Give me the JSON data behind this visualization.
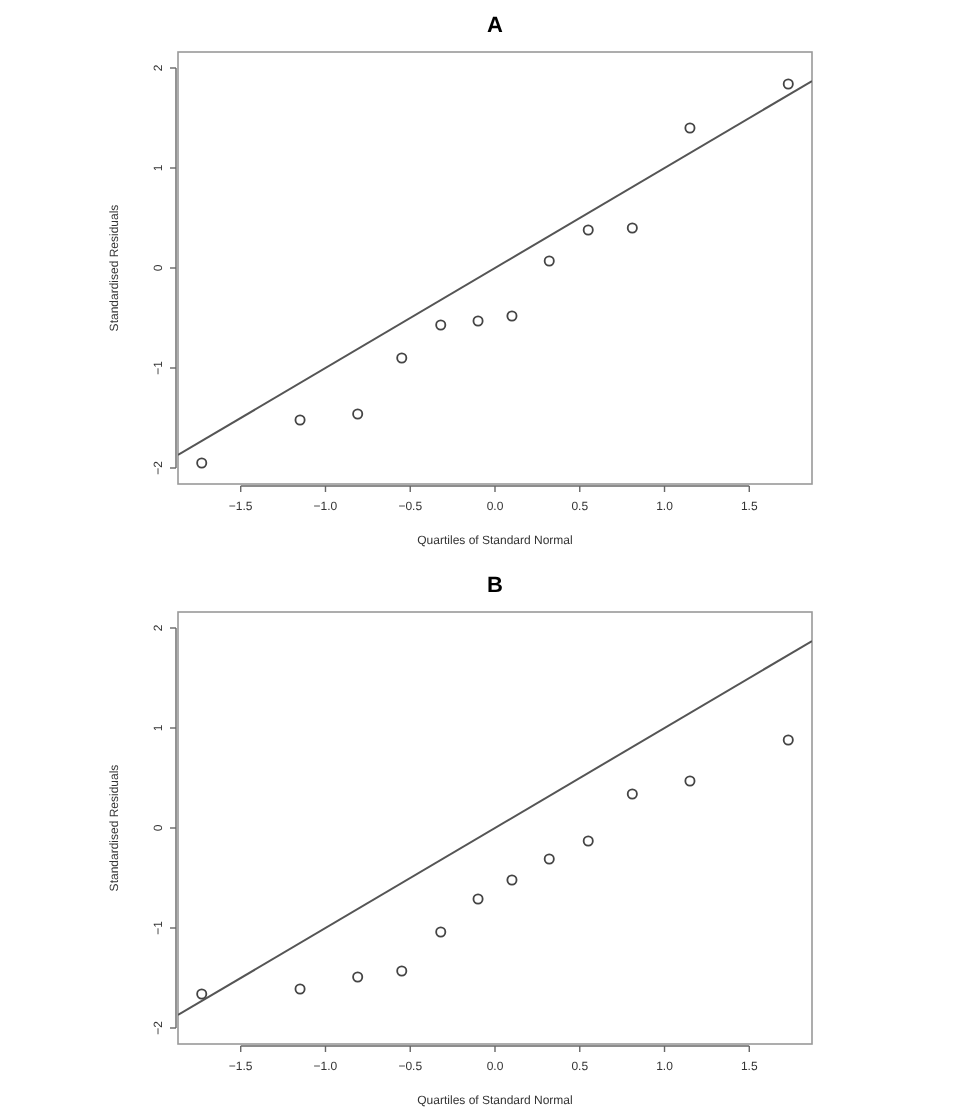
{
  "chart_data": [
    {
      "type": "scatter",
      "title": "A",
      "xlabel": "Quartiles of Standard Normal",
      "ylabel": "Standardised Residuals",
      "xlim": [
        -1.87,
        1.87
      ],
      "ylim": [
        -2.16,
        2.16
      ],
      "xticks": [
        -1.5,
        {
          "value": -1,
          "label": "−1.0"
        },
        -0.5,
        {
          "value": 0,
          "label": "0.0"
        },
        0.5,
        {
          "value": 1,
          "label": "1.0"
        },
        1.5
      ],
      "yticks": [
        -2,
        -1,
        0,
        1,
        2
      ],
      "grid": false,
      "series": [
        {
          "color": "#444444",
          "marker": "circle",
          "x": [
            -1.73,
            -1.15,
            -0.81,
            -0.55,
            -0.32,
            -0.1,
            0.1,
            0.32,
            0.55,
            0.81,
            1.15,
            1.73
          ],
          "values": [
            -1.95,
            -1.52,
            -1.46,
            -0.9,
            -0.57,
            -0.53,
            -0.48,
            0.07,
            0.38,
            0.4,
            1.4,
            1.84
          ]
        },
        {
          "type": "line",
          "color": "#555555",
          "x": [
            -1.87,
            1.87
          ],
          "values": [
            -1.87,
            1.87
          ]
        }
      ]
    },
    {
      "type": "scatter",
      "title": "B",
      "xlabel": "Quartiles of Standard Normal",
      "ylabel": "Standardised Residuals",
      "xlim": [
        -1.87,
        1.87
      ],
      "ylim": [
        -2.16,
        2.16
      ],
      "xticks": [
        -1.5,
        {
          "value": -1,
          "label": "−1.0"
        },
        -0.5,
        {
          "value": 0,
          "label": "0.0"
        },
        0.5,
        {
          "value": 1,
          "label": "1.0"
        },
        1.5
      ],
      "yticks": [
        -2,
        -1,
        0,
        1,
        2
      ],
      "grid": false,
      "series": [
        {
          "color": "#444444",
          "marker": "circle",
          "x": [
            -1.73,
            -1.15,
            -0.81,
            -0.55,
            -0.32,
            -0.1,
            0.1,
            0.32,
            0.55,
            0.81,
            1.15,
            1.73
          ],
          "values": [
            -1.66,
            -1.61,
            -1.49,
            -1.43,
            -1.04,
            -0.71,
            -0.52,
            -0.31,
            -0.13,
            0.34,
            0.47,
            0.88
          ]
        },
        {
          "type": "line",
          "color": "#555555",
          "x": [
            -1.87,
            1.87
          ],
          "values": [
            -1.87,
            1.87
          ]
        }
      ]
    }
  ]
}
